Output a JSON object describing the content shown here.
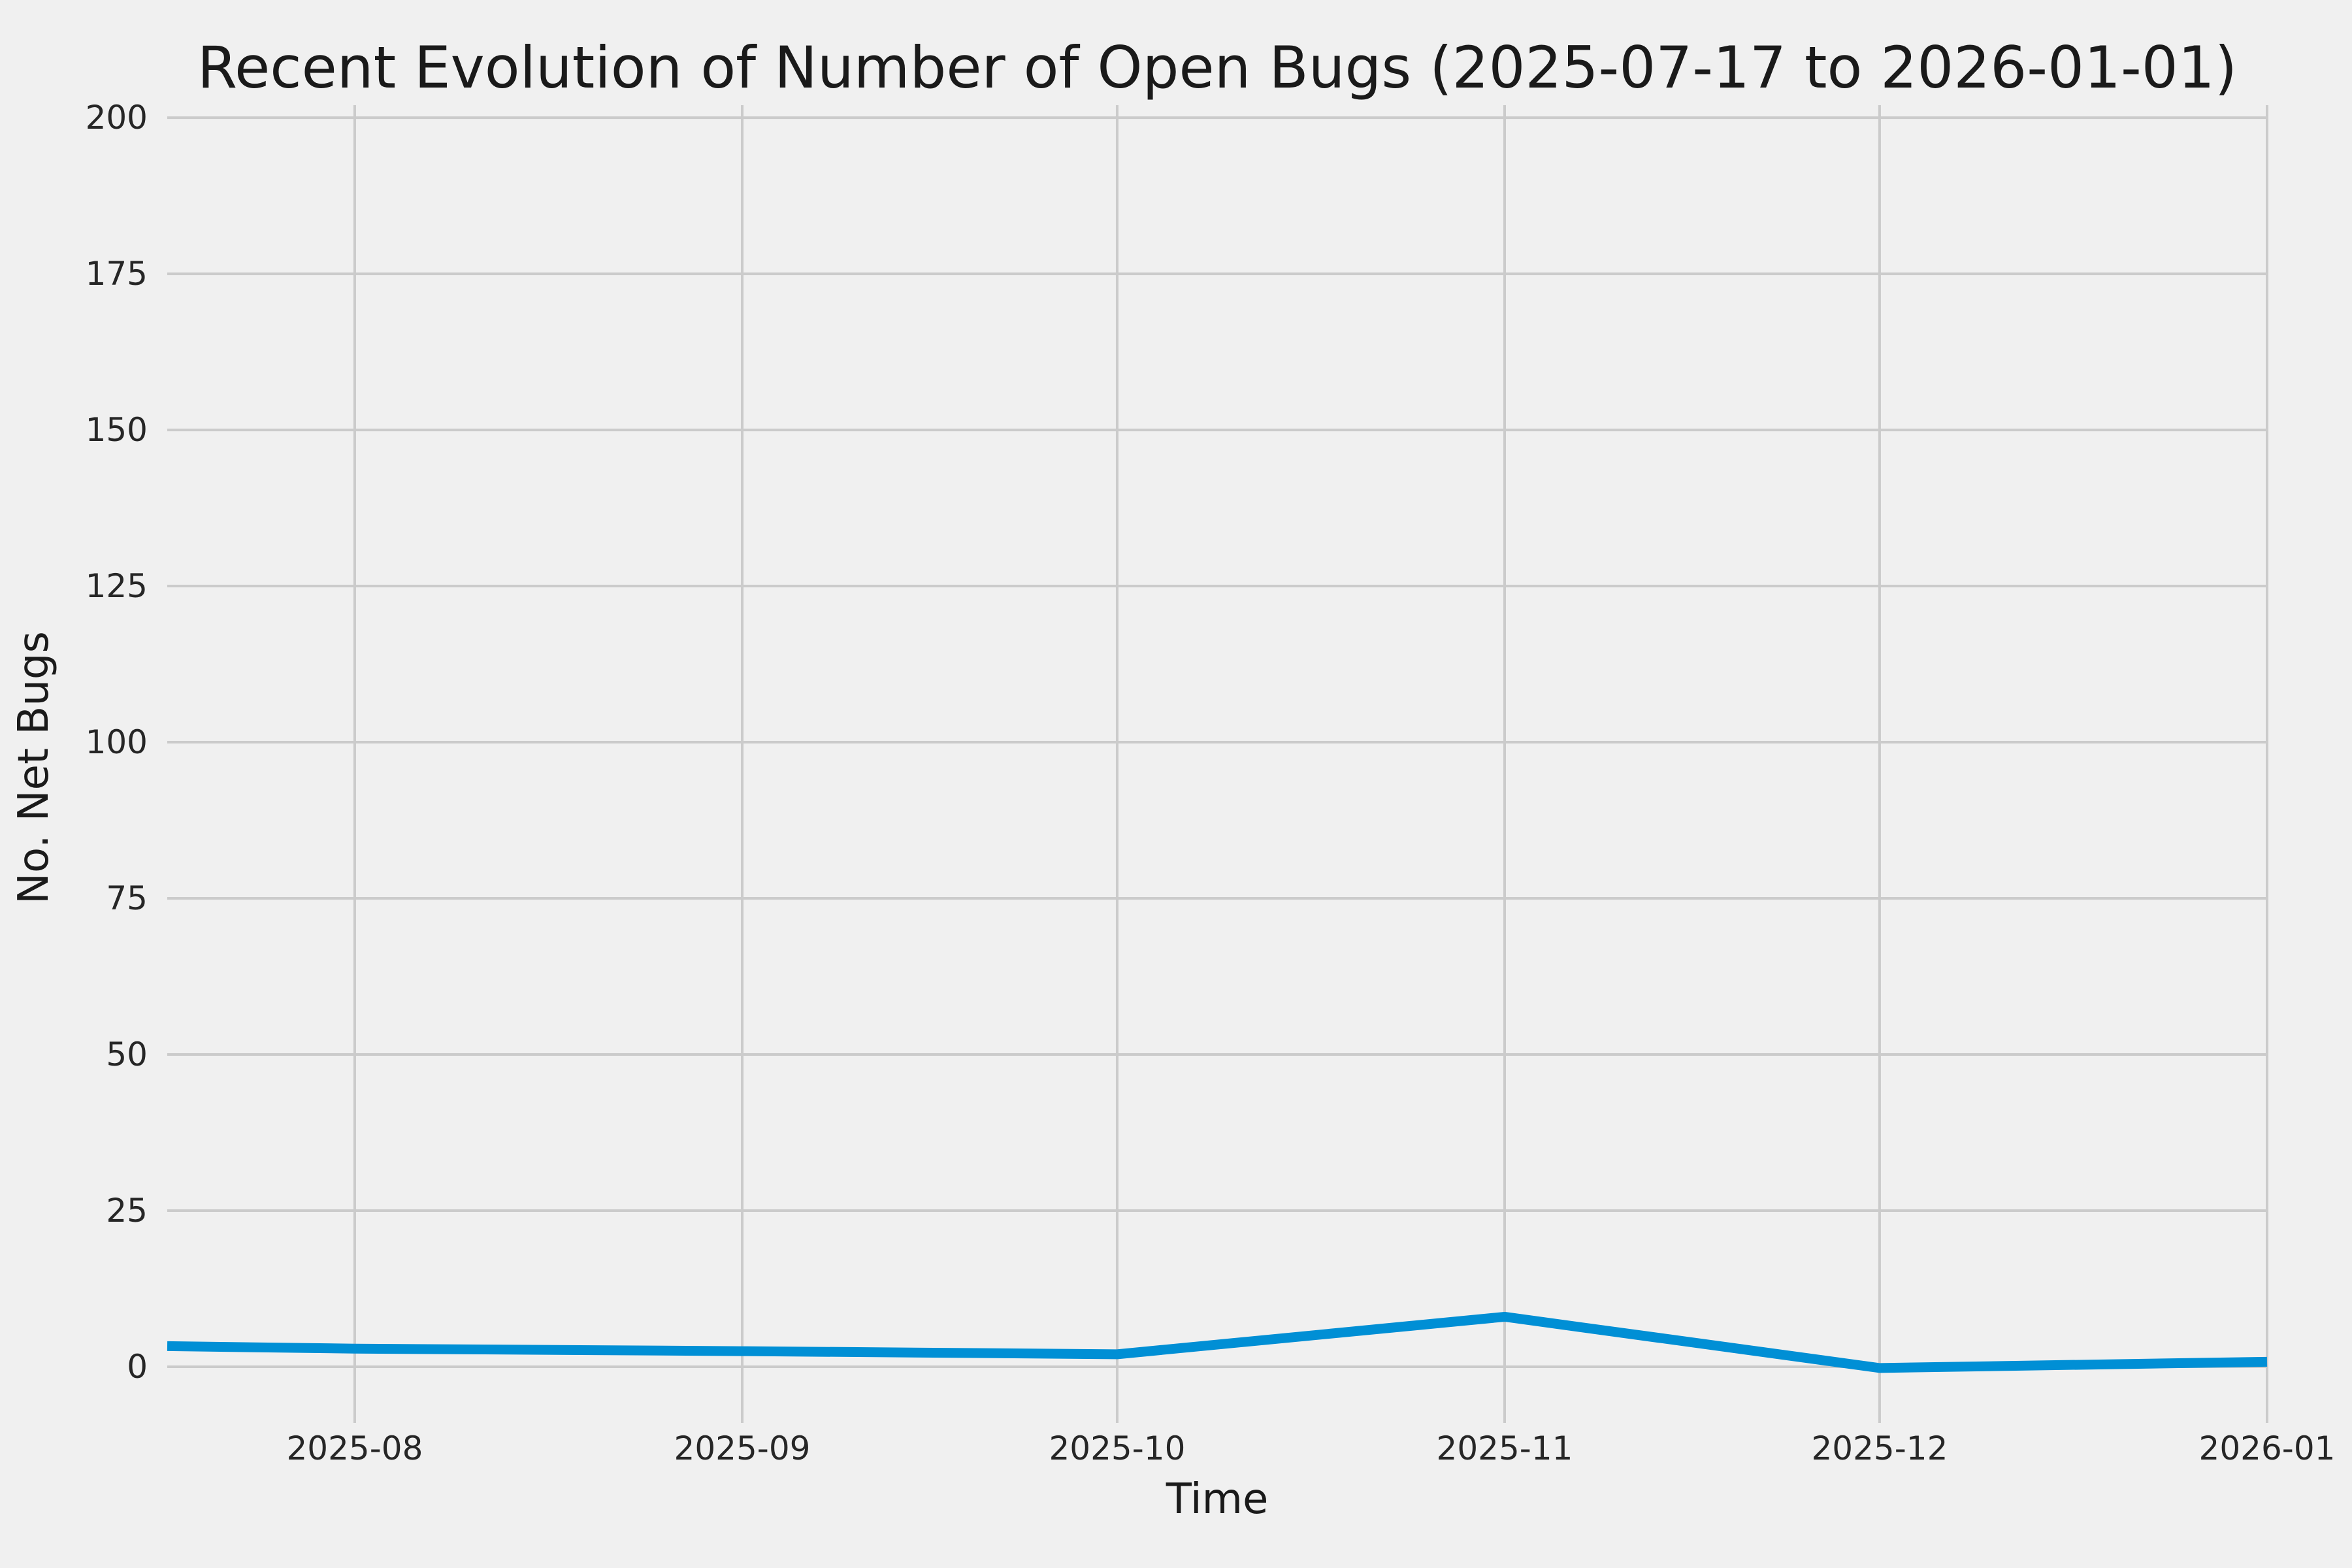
{
  "chart_data": {
    "type": "line",
    "title": "Recent Evolution of Number of Open Bugs (2025-07-17 to 2026-01-01)",
    "xlabel": "Time",
    "ylabel": "No. Net Bugs",
    "x": [
      "2025-07-17",
      "2025-08-01",
      "2025-09-01",
      "2025-10-01",
      "2025-11-01",
      "2025-12-01",
      "2026-01-01"
    ],
    "values": [
      3.3,
      2.9,
      2.5,
      2.0,
      8.0,
      -0.2,
      0.8
    ],
    "xlim": [
      "2025-07-17",
      "2026-01-01"
    ],
    "ylim": [
      -9,
      202
    ],
    "xticks": [
      "2025-08-01",
      "2025-09-01",
      "2025-10-01",
      "2025-11-01",
      "2025-12-01",
      "2026-01-01"
    ],
    "xtick_labels": [
      "2025-08",
      "2025-09",
      "2025-10",
      "2025-11",
      "2025-12",
      "2026-01"
    ],
    "yticks": [
      0,
      25,
      50,
      75,
      100,
      125,
      150,
      175,
      200
    ],
    "ytick_labels": [
      "0",
      "25",
      "50",
      "75",
      "100",
      "125",
      "150",
      "175",
      "200"
    ],
    "grid": true,
    "legend_position": "none",
    "line_color": "#008FD5",
    "background_color": "#F0F0F0",
    "grid_color": "#CBCBCB",
    "text_color": "#262626"
  }
}
